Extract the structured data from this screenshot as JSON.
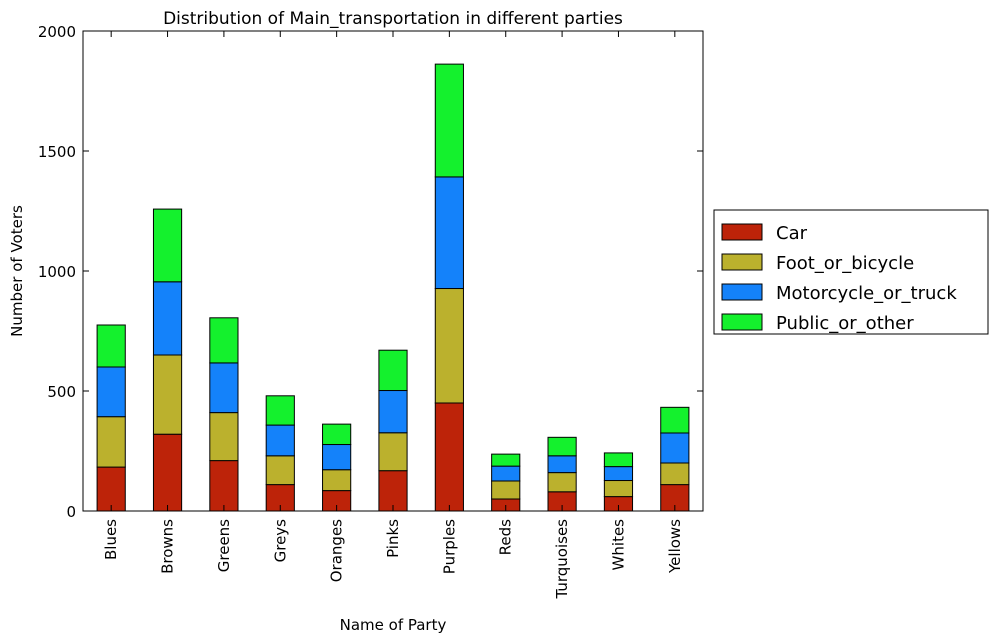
{
  "chart_data": {
    "type": "bar",
    "stacked": true,
    "title": "Distribution of Main_transportation in different parties",
    "xlabel": "Name of Party",
    "ylabel": "Number of Voters",
    "ylim": [
      0,
      2000
    ],
    "yticks": [
      0,
      500,
      1000,
      1500,
      2000
    ],
    "grid": false,
    "legend_position": "outside-right",
    "categories": [
      "Blues",
      "Browns",
      "Greens",
      "Greys",
      "Oranges",
      "Pinks",
      "Purples",
      "Reds",
      "Turquoises",
      "Whites",
      "Yellows"
    ],
    "series": [
      {
        "name": "Car",
        "color": "#bd2309",
        "values": [
          183,
          320,
          210,
          110,
          85,
          168,
          450,
          50,
          80,
          60,
          110
        ]
      },
      {
        "name": "Foot_or_bicycle",
        "color": "#bbb12d",
        "values": [
          210,
          330,
          200,
          120,
          87,
          158,
          477,
          75,
          80,
          67,
          90
        ]
      },
      {
        "name": "Motorcycle_or_truck",
        "color": "#1482fa",
        "values": [
          207,
          305,
          207,
          128,
          105,
          176,
          465,
          62,
          70,
          58,
          125
        ]
      },
      {
        "name": "Public_or_other",
        "color": "#14f12d",
        "values": [
          175,
          303,
          188,
          122,
          85,
          168,
          470,
          50,
          77,
          57,
          107
        ]
      }
    ]
  }
}
